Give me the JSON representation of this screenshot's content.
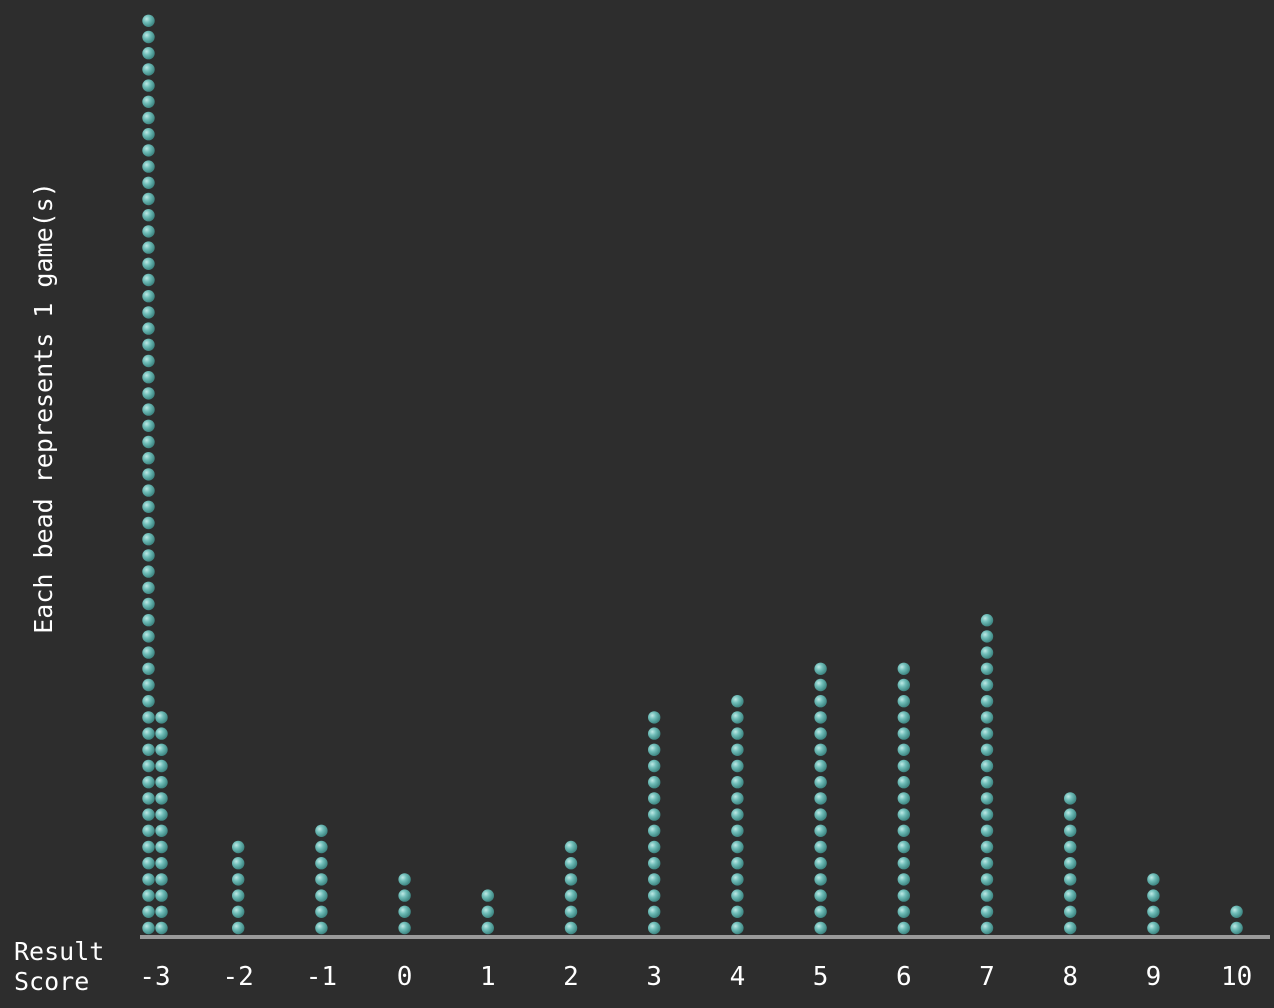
{
  "chart_data": {
    "type": "dot-plot",
    "ylabel": "Each bead represents 1 game(s)",
    "xlabel_line1": "Result",
    "xlabel_line2": "Score",
    "categories": [
      "-3",
      "-2",
      "-1",
      "0",
      "1",
      "2",
      "3",
      "4",
      "5",
      "6",
      "7",
      "8",
      "9",
      "10"
    ],
    "values": [
      71,
      6,
      7,
      4,
      3,
      6,
      14,
      15,
      17,
      17,
      20,
      9,
      4,
      2
    ],
    "unit": "game(s)",
    "bead_color": "#5aaba6",
    "axis_color": "#9a9a9a",
    "text_color": "#ffffff",
    "background": "#2d2d2d"
  }
}
